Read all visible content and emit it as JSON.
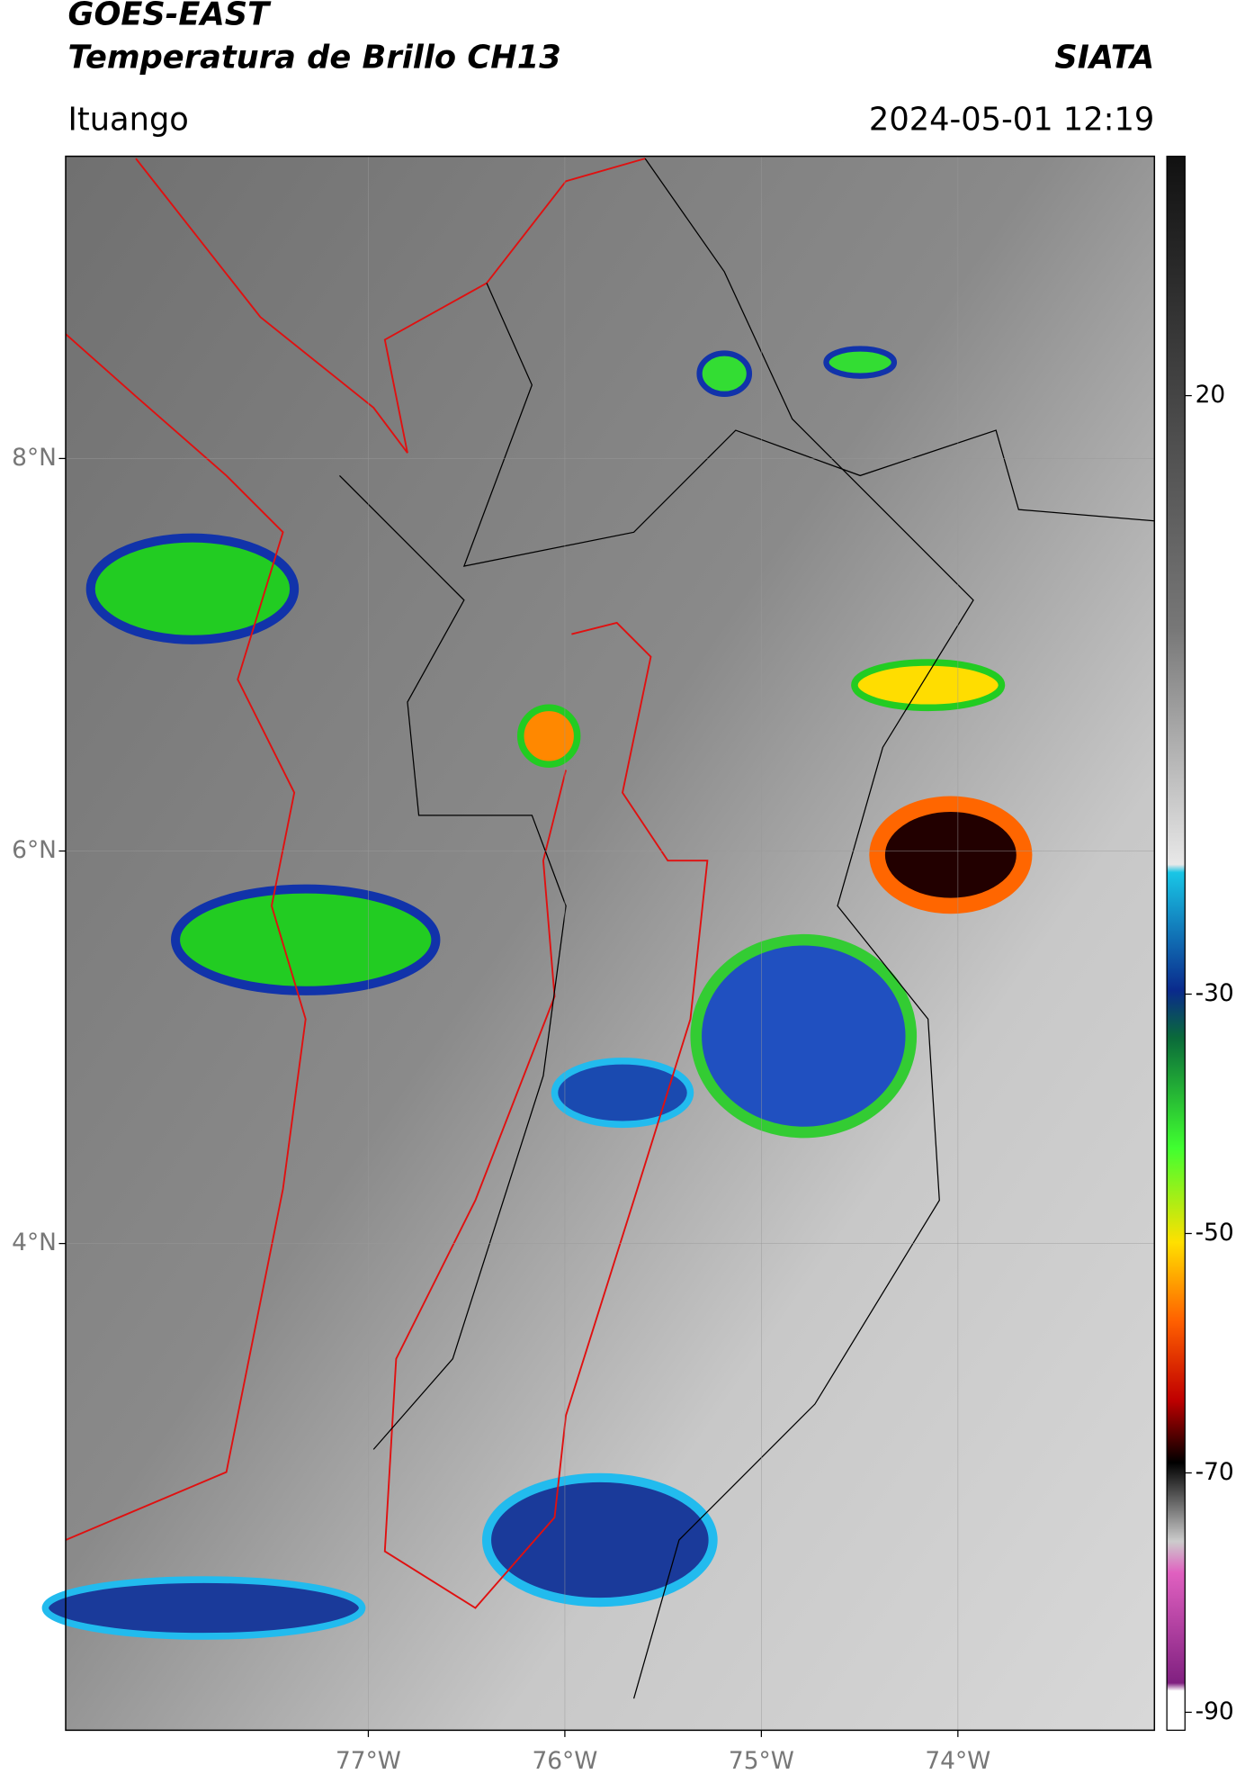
{
  "header": {
    "title": "GOES-EAST",
    "subtitle": "Temperatura de Brillo CH13",
    "brand": "SIATA",
    "location": "Ituango",
    "datetime": "2024-05-01 12:19"
  },
  "map": {
    "xlim": [
      -78.54,
      -73.0
    ],
    "ylim": [
      1.52,
      9.54
    ],
    "xticks": [
      {
        "value": -77,
        "label": "77°W"
      },
      {
        "value": -76,
        "label": "76°W"
      },
      {
        "value": -75,
        "label": "75°W"
      },
      {
        "value": -74,
        "label": "74°W"
      }
    ],
    "yticks": [
      {
        "value": 8,
        "label": "8°N"
      },
      {
        "value": 6,
        "label": "6°N"
      },
      {
        "value": 4,
        "label": "4°N"
      }
    ],
    "grid": true
  },
  "colorbar": {
    "clim": [
      -91.5,
      40
    ],
    "ticks": [
      20,
      -30,
      -50,
      -70,
      -90
    ]
  }
}
